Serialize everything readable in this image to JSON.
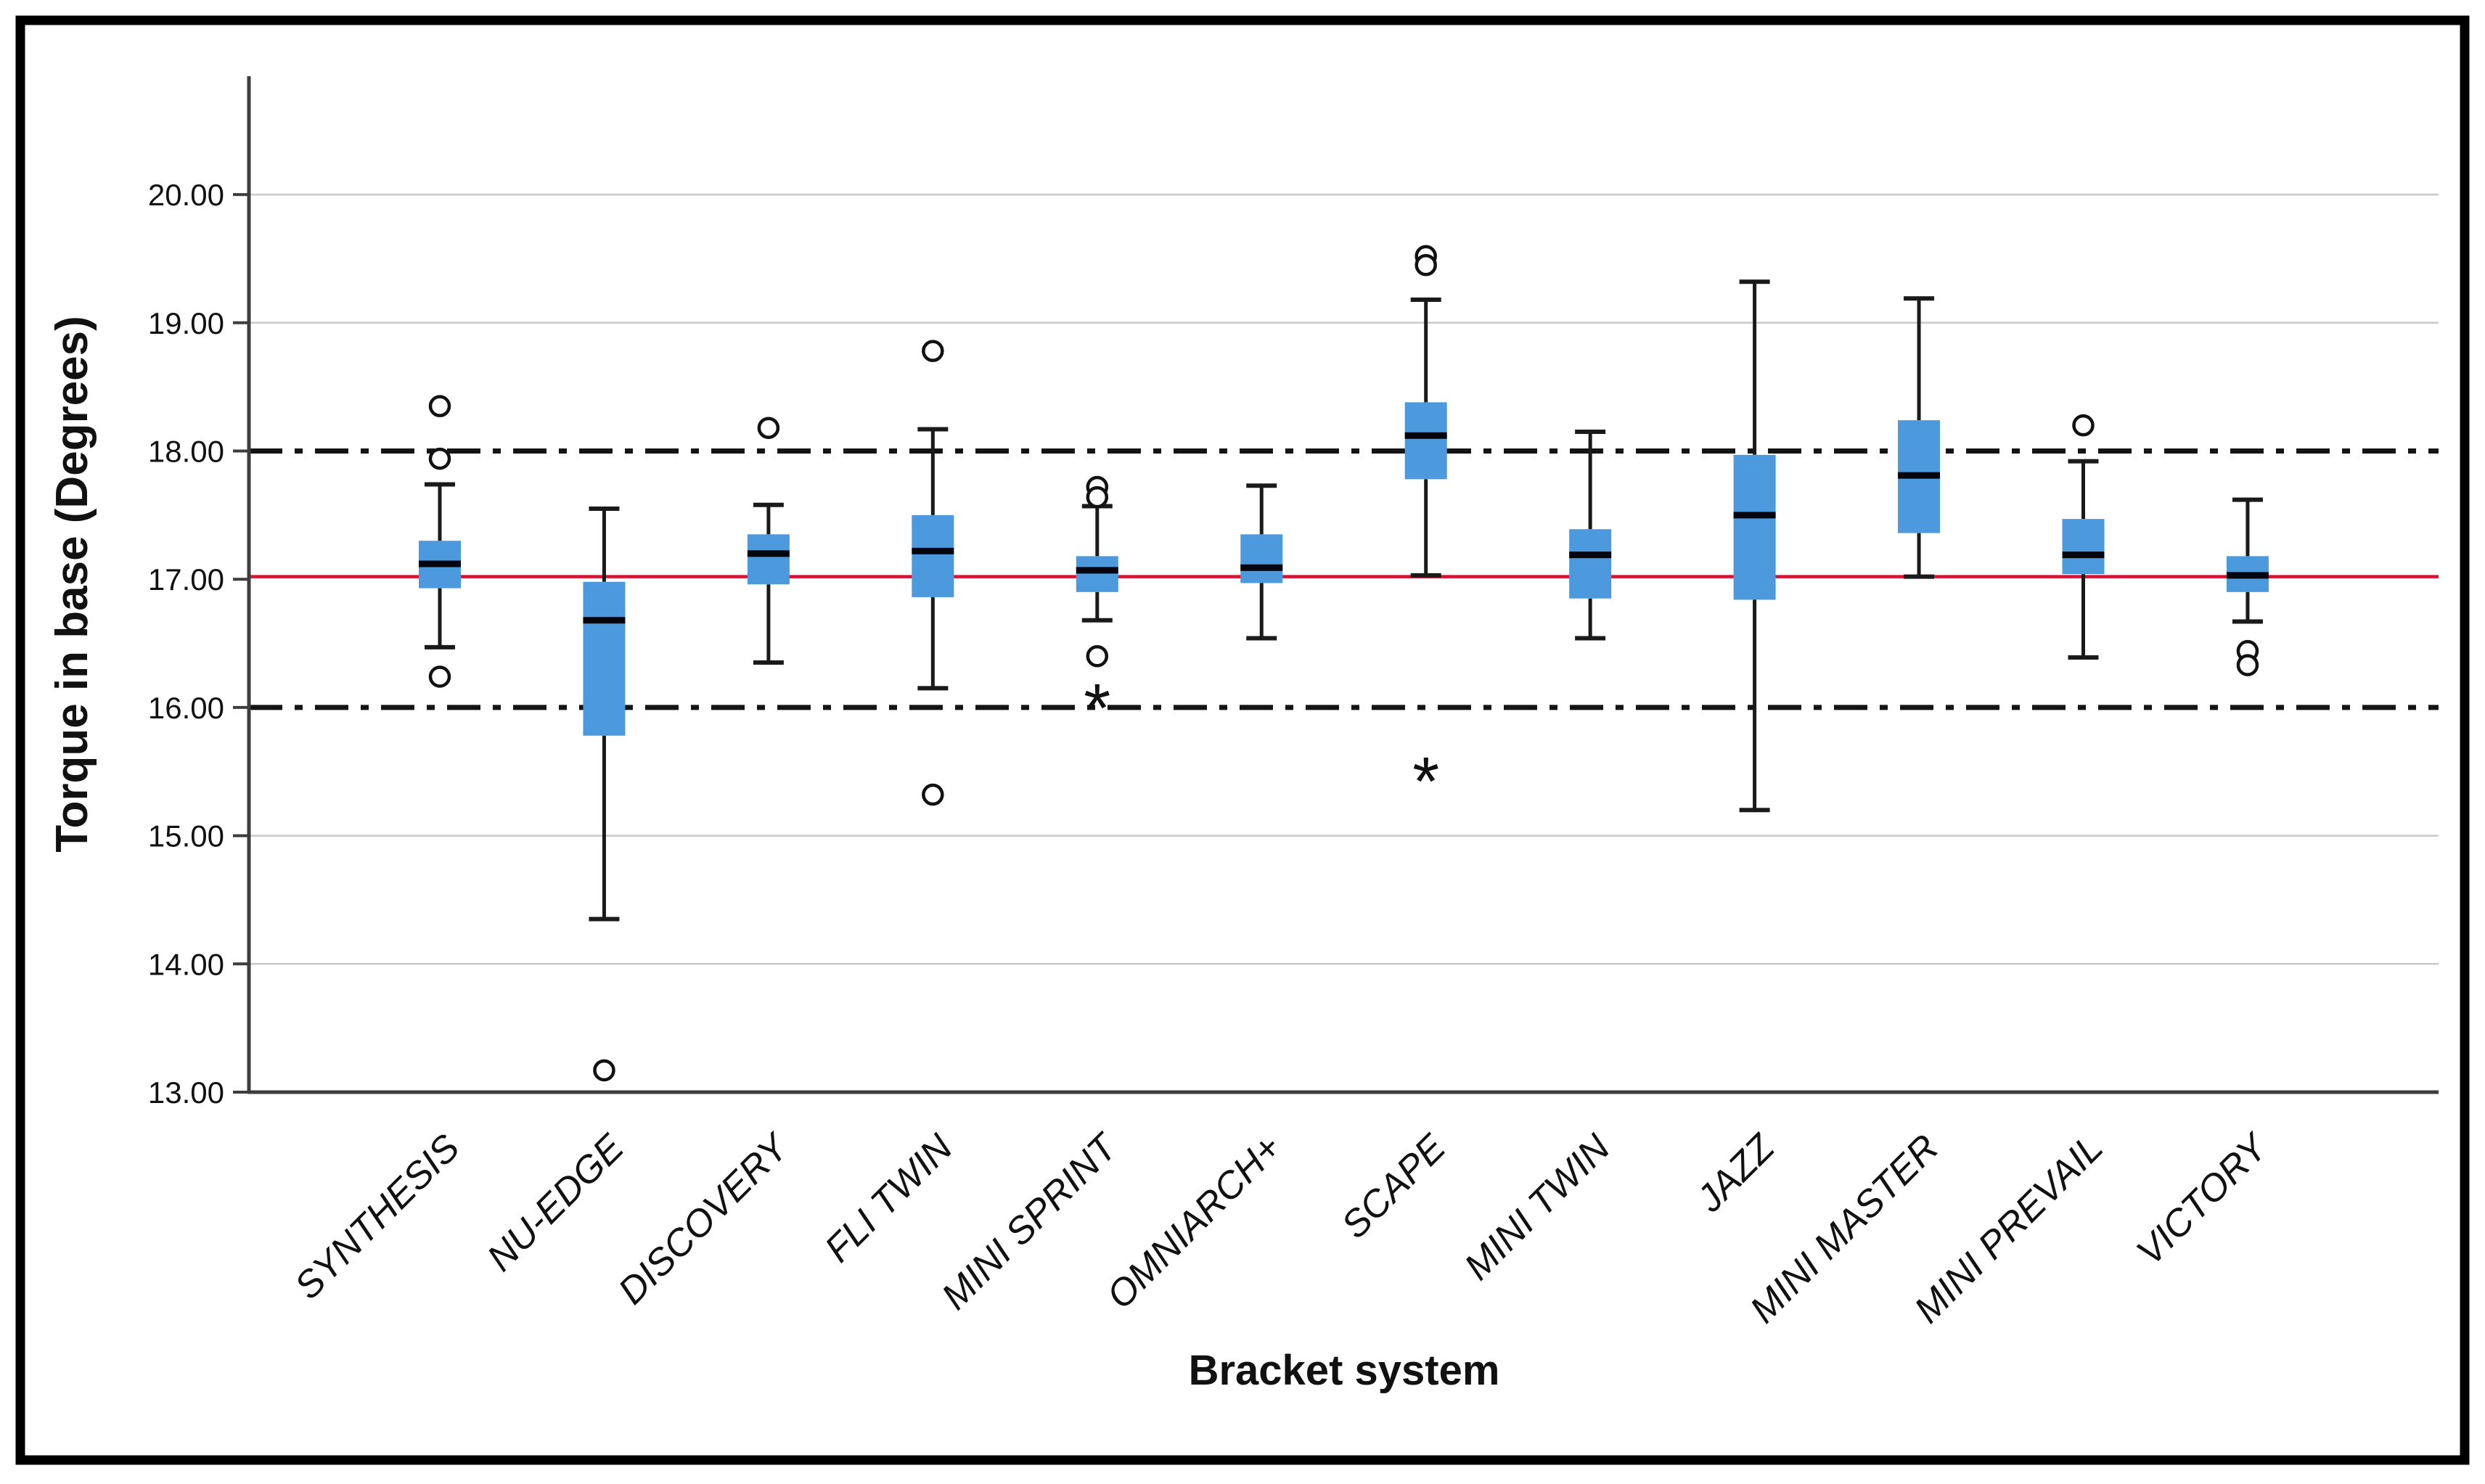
{
  "chart_data": {
    "type": "boxplot",
    "title": "",
    "xlabel": "Bracket system",
    "ylabel": "Torque in base (Degrees)",
    "ylim": [
      13.0,
      20.92
    ],
    "yticks": [
      13,
      14,
      15,
      16,
      17,
      18,
      19,
      20
    ],
    "ytick_labels": [
      "13.00",
      "14.00",
      "15.00",
      "16.00",
      "17.00",
      "18.00",
      "19.00",
      "20.00"
    ],
    "gridlines_at": [
      14,
      15,
      19,
      20
    ],
    "grid_on": true,
    "legend": "none",
    "reference_lines": [
      {
        "name": "upper-limit-line",
        "value": 18.0,
        "style": "dashdot",
        "color": "#141414"
      },
      {
        "name": "mean-line",
        "value": 17.02,
        "style": "solid",
        "color": "#da1132"
      },
      {
        "name": "lower-limit-line",
        "value": 16.0,
        "style": "dashdot",
        "color": "#141414"
      }
    ],
    "categories": [
      "SYNTHESIS",
      "NU-EDGE",
      "DISCOVERY",
      "FLI TWIN",
      "MINI SPRINT",
      "OMNIARCH+",
      "SCAPE",
      "MINI TWIN",
      "JAZZ",
      "MINI MASTER",
      "MINI PREVAIL",
      "VICTORY"
    ],
    "series": [
      {
        "name": "SYNTHESIS",
        "whisker_low": 16.47,
        "q1": 16.93,
        "median": 17.12,
        "q3": 17.3,
        "whisker_high": 17.74,
        "outliers": [
          18.35,
          17.94,
          16.24
        ],
        "extremes": []
      },
      {
        "name": "NU-EDGE",
        "whisker_low": 14.35,
        "q1": 15.78,
        "median": 16.68,
        "q3": 16.98,
        "whisker_high": 17.55,
        "outliers": [
          13.17
        ],
        "extremes": []
      },
      {
        "name": "DISCOVERY",
        "whisker_low": 16.35,
        "q1": 16.96,
        "median": 17.2,
        "q3": 17.35,
        "whisker_high": 17.58,
        "outliers": [
          18.18
        ],
        "extremes": []
      },
      {
        "name": "FLI TWIN",
        "whisker_low": 16.15,
        "q1": 16.86,
        "median": 17.22,
        "q3": 17.5,
        "whisker_high": 18.17,
        "outliers": [
          18.78,
          15.32
        ],
        "extremes": []
      },
      {
        "name": "MINI SPRINT",
        "whisker_low": 16.68,
        "q1": 16.9,
        "median": 17.07,
        "q3": 17.18,
        "whisker_high": 17.57,
        "outliers": [
          17.72,
          17.64,
          16.4
        ],
        "extremes": [
          16.05
        ]
      },
      {
        "name": "OMNIARCH+",
        "whisker_low": 16.54,
        "q1": 16.97,
        "median": 17.09,
        "q3": 17.35,
        "whisker_high": 17.73,
        "outliers": [],
        "extremes": []
      },
      {
        "name": "SCAPE",
        "whisker_low": 17.03,
        "q1": 17.78,
        "median": 18.12,
        "q3": 18.38,
        "whisker_high": 19.18,
        "outliers": [
          19.52,
          19.45
        ],
        "extremes": [
          15.48
        ]
      },
      {
        "name": "MINI TWIN",
        "whisker_low": 16.54,
        "q1": 16.85,
        "median": 17.19,
        "q3": 17.39,
        "whisker_high": 18.15,
        "outliers": [],
        "extremes": []
      },
      {
        "name": "JAZZ",
        "whisker_low": 15.2,
        "q1": 16.84,
        "median": 17.5,
        "q3": 17.97,
        "whisker_high": 19.32,
        "outliers": [],
        "extremes": []
      },
      {
        "name": "MINI MASTER",
        "whisker_low": 17.02,
        "q1": 17.36,
        "median": 17.81,
        "q3": 18.24,
        "whisker_high": 19.19,
        "outliers": [],
        "extremes": []
      },
      {
        "name": "MINI PREVAIL",
        "whisker_low": 16.39,
        "q1": 17.04,
        "median": 17.19,
        "q3": 17.47,
        "whisker_high": 17.92,
        "outliers": [
          18.2
        ],
        "extremes": []
      },
      {
        "name": "VICTORY",
        "whisker_low": 16.67,
        "q1": 16.9,
        "median": 17.03,
        "q3": 17.18,
        "whisker_high": 17.62,
        "outliers": [
          16.44,
          16.33
        ],
        "extremes": []
      }
    ]
  },
  "colors": {
    "box_fill": "#4d99dd",
    "median": "#05050f",
    "whisker": "#1a1a1a",
    "outlier_stroke": "#111111",
    "gridline": "#c9c9c9",
    "axis": "#3d3d3d",
    "mean_line": "#da1132",
    "dashdot_line": "#141414",
    "text": "#111111",
    "figure_border": "#000000",
    "background": "#ffffff"
  }
}
